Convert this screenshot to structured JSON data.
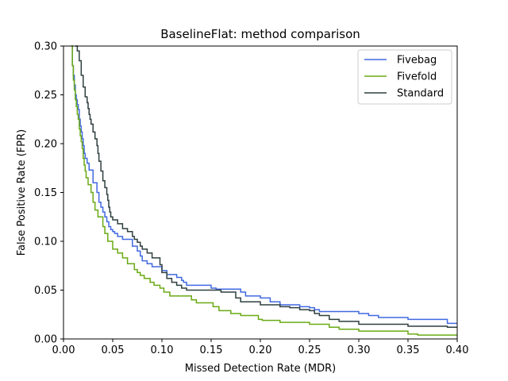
{
  "chart_data": {
    "type": "line",
    "title": "BaselineFlat: method comparison",
    "xlabel": "Missed Detection Rate (MDR)",
    "ylabel": "False Positive Rate (FPR)",
    "xlim": [
      0.0,
      0.4
    ],
    "ylim": [
      0.0,
      0.3
    ],
    "xticks": [
      "0.00",
      "0.05",
      "0.10",
      "0.15",
      "0.20",
      "0.25",
      "0.30",
      "0.35",
      "0.40"
    ],
    "yticks": [
      "0.00",
      "0.05",
      "0.10",
      "0.15",
      "0.20",
      "0.25",
      "0.30"
    ],
    "grid": false,
    "legend_position": "top-right",
    "series": [
      {
        "name": "Fivebag",
        "color": "#4169e1",
        "x": [
          0.008,
          0.009,
          0.01,
          0.011,
          0.012,
          0.013,
          0.014,
          0.015,
          0.016,
          0.017,
          0.018,
          0.019,
          0.02,
          0.021,
          0.022,
          0.024,
          0.026,
          0.03,
          0.034,
          0.036,
          0.038,
          0.04,
          0.042,
          0.044,
          0.046,
          0.048,
          0.05,
          0.052,
          0.055,
          0.06,
          0.07,
          0.075,
          0.078,
          0.08,
          0.085,
          0.09,
          0.1,
          0.105,
          0.115,
          0.12,
          0.122,
          0.125,
          0.15,
          0.155,
          0.18,
          0.185,
          0.2,
          0.21,
          0.22,
          0.24,
          0.25,
          0.255,
          0.26,
          0.3,
          0.31,
          0.32,
          0.35,
          0.39,
          0.4
        ],
        "y": [
          0.3,
          0.28,
          0.27,
          0.26,
          0.25,
          0.245,
          0.24,
          0.235,
          0.225,
          0.218,
          0.212,
          0.205,
          0.198,
          0.19,
          0.185,
          0.18,
          0.173,
          0.16,
          0.15,
          0.14,
          0.135,
          0.13,
          0.125,
          0.12,
          0.115,
          0.112,
          0.11,
          0.108,
          0.105,
          0.102,
          0.095,
          0.09,
          0.085,
          0.08,
          0.077,
          0.074,
          0.07,
          0.066,
          0.063,
          0.06,
          0.058,
          0.055,
          0.052,
          0.051,
          0.048,
          0.044,
          0.042,
          0.038,
          0.035,
          0.033,
          0.032,
          0.03,
          0.028,
          0.026,
          0.024,
          0.022,
          0.02,
          0.016,
          0.016
        ]
      },
      {
        "name": "Fivefold",
        "color": "#6aaa14",
        "x": [
          0.008,
          0.009,
          0.01,
          0.011,
          0.012,
          0.013,
          0.014,
          0.015,
          0.016,
          0.017,
          0.018,
          0.019,
          0.02,
          0.021,
          0.022,
          0.023,
          0.025,
          0.028,
          0.03,
          0.032,
          0.035,
          0.04,
          0.042,
          0.045,
          0.05,
          0.055,
          0.06,
          0.065,
          0.072,
          0.075,
          0.078,
          0.082,
          0.088,
          0.092,
          0.098,
          0.102,
          0.108,
          0.13,
          0.135,
          0.152,
          0.158,
          0.17,
          0.18,
          0.198,
          0.202,
          0.22,
          0.25,
          0.27,
          0.28,
          0.3,
          0.35,
          0.36,
          0.4
        ],
        "y": [
          0.3,
          0.28,
          0.265,
          0.255,
          0.245,
          0.238,
          0.23,
          0.225,
          0.215,
          0.208,
          0.202,
          0.195,
          0.185,
          0.178,
          0.172,
          0.165,
          0.158,
          0.15,
          0.14,
          0.132,
          0.125,
          0.115,
          0.108,
          0.1,
          0.092,
          0.088,
          0.083,
          0.077,
          0.071,
          0.068,
          0.065,
          0.062,
          0.058,
          0.055,
          0.052,
          0.048,
          0.044,
          0.04,
          0.037,
          0.033,
          0.029,
          0.026,
          0.024,
          0.02,
          0.019,
          0.017,
          0.015,
          0.012,
          0.01,
          0.008,
          0.005,
          0.004,
          0.004
        ]
      },
      {
        "name": "Standard",
        "color": "#2f3f3f",
        "x": [
          0.012,
          0.014,
          0.016,
          0.018,
          0.02,
          0.022,
          0.024,
          0.025,
          0.026,
          0.027,
          0.028,
          0.03,
          0.032,
          0.034,
          0.035,
          0.036,
          0.038,
          0.04,
          0.042,
          0.044,
          0.045,
          0.046,
          0.047,
          0.048,
          0.05,
          0.055,
          0.06,
          0.065,
          0.07,
          0.072,
          0.075,
          0.078,
          0.08,
          0.085,
          0.09,
          0.098,
          0.1,
          0.105,
          0.11,
          0.115,
          0.12,
          0.125,
          0.16,
          0.175,
          0.18,
          0.2,
          0.215,
          0.22,
          0.23,
          0.24,
          0.25,
          0.255,
          0.26,
          0.27,
          0.28,
          0.3,
          0.35,
          0.39,
          0.4
        ],
        "y": [
          0.3,
          0.295,
          0.285,
          0.27,
          0.258,
          0.248,
          0.242,
          0.236,
          0.23,
          0.225,
          0.22,
          0.212,
          0.205,
          0.198,
          0.19,
          0.182,
          0.172,
          0.162,
          0.155,
          0.148,
          0.142,
          0.135,
          0.13,
          0.125,
          0.122,
          0.118,
          0.113,
          0.11,
          0.105,
          0.102,
          0.099,
          0.095,
          0.092,
          0.088,
          0.083,
          0.076,
          0.068,
          0.062,
          0.058,
          0.055,
          0.052,
          0.05,
          0.048,
          0.042,
          0.038,
          0.035,
          0.035,
          0.033,
          0.032,
          0.03,
          0.029,
          0.026,
          0.024,
          0.02,
          0.018,
          0.015,
          0.013,
          0.012,
          0.012
        ]
      }
    ]
  }
}
